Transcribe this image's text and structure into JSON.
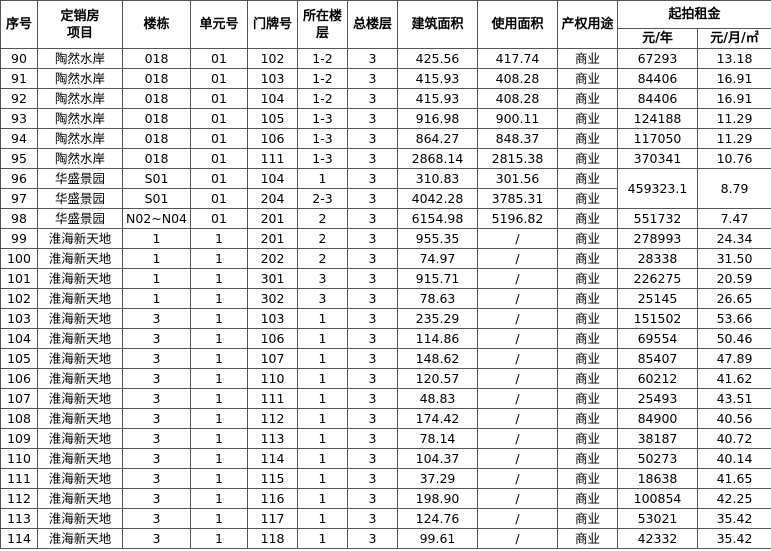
{
  "table": {
    "header": {
      "columns": [
        [
          "序号"
        ],
        [
          "定销房",
          "项目"
        ],
        [
          "楼栋"
        ],
        [
          "单元号"
        ],
        [
          "门牌号"
        ],
        [
          "所在楼",
          "层"
        ],
        [
          "总楼层"
        ],
        [
          "建筑面积"
        ],
        [
          "使用面积"
        ],
        [
          "产权用途"
        ]
      ],
      "group": "起拍租金",
      "sub": [
        "元/年",
        "元/月/㎡"
      ]
    },
    "rows": [
      [
        "90",
        "陶然水岸",
        "018",
        "01",
        "102",
        "1-2",
        "3",
        "425.56",
        "417.74",
        "商业",
        "67293",
        "13.18"
      ],
      [
        "91",
        "陶然水岸",
        "018",
        "01",
        "103",
        "1-2",
        "3",
        "415.93",
        "408.28",
        "商业",
        "84406",
        "16.91"
      ],
      [
        "92",
        "陶然水岸",
        "018",
        "01",
        "104",
        "1-2",
        "3",
        "415.93",
        "408.28",
        "商业",
        "84406",
        "16.91"
      ],
      [
        "93",
        "陶然水岸",
        "018",
        "01",
        "105",
        "1-3",
        "3",
        "916.98",
        "900.11",
        "商业",
        "124188",
        "11.29"
      ],
      [
        "94",
        "陶然水岸",
        "018",
        "01",
        "106",
        "1-3",
        "3",
        "864.27",
        "848.37",
        "商业",
        "117050",
        "11.29"
      ],
      [
        "95",
        "陶然水岸",
        "018",
        "01",
        "111",
        "1-3",
        "3",
        "2868.14",
        "2815.38",
        "商业",
        "370341",
        "10.76"
      ],
      [
        "96",
        "华盛景园",
        "S01",
        "01",
        "104",
        "1",
        "3",
        "310.83",
        "301.56",
        "商业",
        "459323.1",
        "8.79"
      ],
      [
        "97",
        "华盛景园",
        "S01",
        "01",
        "204",
        "2-3",
        "3",
        "4042.28",
        "3785.31",
        "商业"
      ],
      [
        "98",
        "华盛景园",
        "N02~N04",
        "01",
        "201",
        "2",
        "3",
        "6154.98",
        "5196.82",
        "商业",
        "551732",
        "7.47"
      ],
      [
        "99",
        "淮海新天地",
        "1",
        "1",
        "201",
        "2",
        "3",
        "955.35",
        "/",
        "商业",
        "278993",
        "24.34"
      ],
      [
        "100",
        "淮海新天地",
        "1",
        "1",
        "202",
        "2",
        "3",
        "74.97",
        "/",
        "商业",
        "28338",
        "31.50"
      ],
      [
        "101",
        "淮海新天地",
        "1",
        "1",
        "301",
        "3",
        "3",
        "915.71",
        "/",
        "商业",
        "226275",
        "20.59"
      ],
      [
        "102",
        "淮海新天地",
        "1",
        "1",
        "302",
        "3",
        "3",
        "78.63",
        "/",
        "商业",
        "25145",
        "26.65"
      ],
      [
        "103",
        "淮海新天地",
        "3",
        "1",
        "103",
        "1",
        "3",
        "235.29",
        "/",
        "商业",
        "151502",
        "53.66"
      ],
      [
        "104",
        "淮海新天地",
        "3",
        "1",
        "106",
        "1",
        "3",
        "114.86",
        "/",
        "商业",
        "69554",
        "50.46"
      ],
      [
        "105",
        "淮海新天地",
        "3",
        "1",
        "107",
        "1",
        "3",
        "148.62",
        "/",
        "商业",
        "85407",
        "47.89"
      ],
      [
        "106",
        "淮海新天地",
        "3",
        "1",
        "110",
        "1",
        "3",
        "120.57",
        "/",
        "商业",
        "60212",
        "41.62"
      ],
      [
        "107",
        "淮海新天地",
        "3",
        "1",
        "111",
        "1",
        "3",
        "48.83",
        "/",
        "商业",
        "25493",
        "43.51"
      ],
      [
        "108",
        "淮海新天地",
        "3",
        "1",
        "112",
        "1",
        "3",
        "174.42",
        "/",
        "商业",
        "84900",
        "40.56"
      ],
      [
        "109",
        "淮海新天地",
        "3",
        "1",
        "113",
        "1",
        "3",
        "78.14",
        "/",
        "商业",
        "38187",
        "40.72"
      ],
      [
        "110",
        "淮海新天地",
        "3",
        "1",
        "114",
        "1",
        "3",
        "104.37",
        "/",
        "商业",
        "50273",
        "40.14"
      ],
      [
        "111",
        "淮海新天地",
        "3",
        "1",
        "115",
        "1",
        "3",
        "37.29",
        "/",
        "商业",
        "18638",
        "41.65"
      ],
      [
        "112",
        "淮海新天地",
        "3",
        "1",
        "116",
        "1",
        "3",
        "198.90",
        "/",
        "商业",
        "100854",
        "42.25"
      ],
      [
        "113",
        "淮海新天地",
        "3",
        "1",
        "117",
        "1",
        "3",
        "124.76",
        "/",
        "商业",
        "53021",
        "35.42"
      ],
      [
        "114",
        "淮海新天地",
        "3",
        "1",
        "118",
        "1",
        "3",
        "99.61",
        "/",
        "商业",
        "42332",
        "35.42"
      ]
    ]
  }
}
